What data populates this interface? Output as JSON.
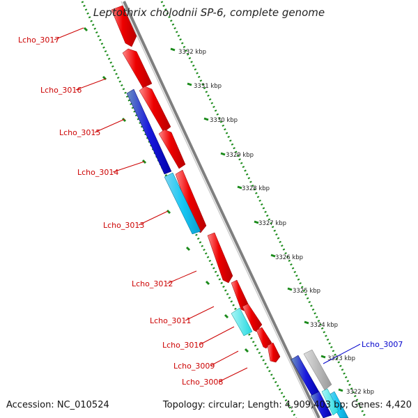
{
  "title": "Leptothrix cholodnii SP-6, complete genome",
  "footer": {
    "accession": "Accession: NC_010524",
    "summary": "Topology: circular; Length: 4,909,403 bp; Genes: 4,420"
  },
  "colors": {
    "forward_gene": "#ee0000",
    "reverse_gene": "#1010dd",
    "reverse_light": "#16c8f0",
    "backbone": "#808080",
    "tick": "#1a8a1a",
    "label_red": "#cc0000",
    "label_blue": "#0000cc"
  },
  "scale_labels": [
    "3332 kbp",
    "3331 kbp",
    "3330 kbp",
    "3329 kbp",
    "3328 kbp",
    "3327 kbp",
    "3326 kbp",
    "3325 kbp",
    "3324 kbp",
    "3323 kbp",
    "3322 kbp"
  ],
  "gene_labels": [
    {
      "text": "Lcho_3017",
      "color": "red"
    },
    {
      "text": "Lcho_3016",
      "color": "red"
    },
    {
      "text": "Lcho_3015",
      "color": "red"
    },
    {
      "text": "Lcho_3014",
      "color": "red"
    },
    {
      "text": "Lcho_3013",
      "color": "red"
    },
    {
      "text": "Lcho_3012",
      "color": "red"
    },
    {
      "text": "Lcho_3011",
      "color": "red"
    },
    {
      "text": "Lcho_3010",
      "color": "red"
    },
    {
      "text": "Lcho_3009",
      "color": "red"
    },
    {
      "text": "Lcho_3008",
      "color": "red"
    },
    {
      "text": "Lcho_3007",
      "color": "blue"
    }
  ]
}
